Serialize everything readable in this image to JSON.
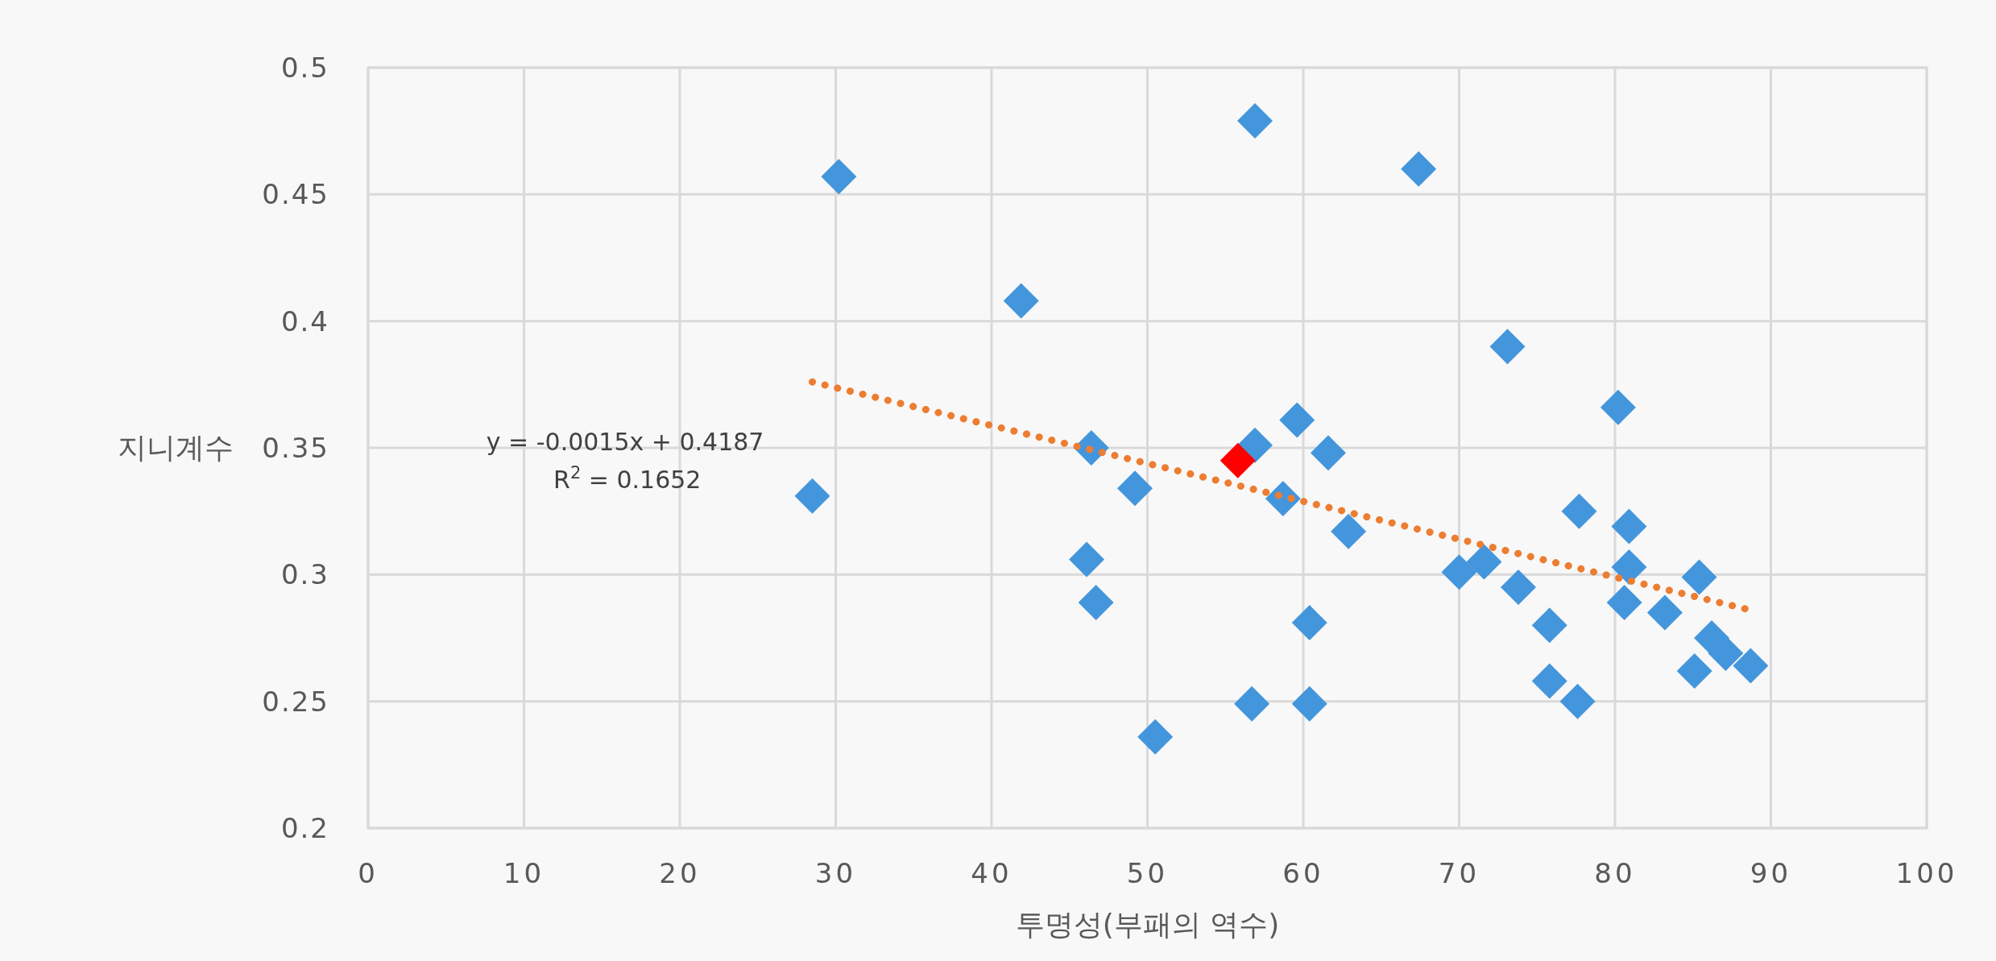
{
  "chart_data": {
    "type": "scatter",
    "xlabel": "투명성(부패의 역수)",
    "ylabel": "지니계수",
    "xlim": [
      0,
      100
    ],
    "xticks": [
      0,
      10,
      20,
      30,
      40,
      50,
      60,
      70,
      80,
      90,
      100
    ],
    "ylim": [
      0.2,
      0.5
    ],
    "yticks": [
      0.2,
      0.25,
      0.3,
      0.35,
      0.4,
      0.45,
      0.5
    ],
    "grid": true,
    "marker": "diamond",
    "annotations": [
      "y = -0.0015x + 0.4187",
      "R$^{2}$ = 0.1652"
    ],
    "series": [
      {
        "type": "scatter",
        "color": "#4496dc",
        "x": [
          28.5,
          30.2,
          41.9,
          46.4,
          46.1,
          46.7,
          49.2,
          56.9,
          67.4,
          73.1,
          80.2,
          59.6,
          56.9,
          61.6,
          58.7,
          62.9,
          77.7,
          80.9,
          70.0,
          71.6,
          80.9,
          85.4,
          73.8,
          80.6,
          83.2,
          60.4,
          75.8,
          86.2,
          87.1,
          88.7,
          85.1,
          75.8,
          56.7,
          60.4,
          77.6,
          50.5
        ],
        "values": [
          0.331,
          0.457,
          0.408,
          0.35,
          0.306,
          0.289,
          0.334,
          0.479,
          0.46,
          0.39,
          0.366,
          0.361,
          0.351,
          0.348,
          0.33,
          0.317,
          0.325,
          0.319,
          0.301,
          0.305,
          0.303,
          0.299,
          0.295,
          0.289,
          0.285,
          0.281,
          0.28,
          0.275,
          0.269,
          0.264,
          0.262,
          0.258,
          0.249,
          0.249,
          0.25,
          0.236
        ]
      },
      {
        "type": "scatter",
        "color": "#ff0000",
        "x": [
          55.8
        ],
        "values": [
          0.345
        ]
      },
      {
        "type": "line",
        "color": "#ed7d31",
        "line_style": "dotted",
        "marker": "none",
        "x": [
          28.5,
          88.7
        ],
        "values": [
          0.376,
          0.286
        ]
      }
    ]
  }
}
